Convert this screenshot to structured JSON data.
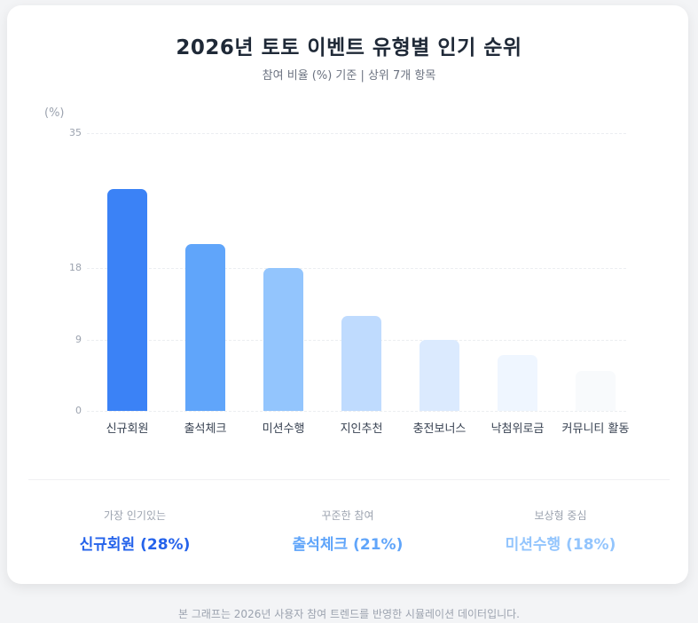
{
  "header": {
    "title": "2026년 토토 이벤트 유형별 인기 순위",
    "subtitle": "참여 비율 (%) 기준 | 상위 7개 항목"
  },
  "chart_data": {
    "type": "bar",
    "title": "2026년 토토 이벤트 유형별 인기 순위",
    "subtitle": "참여 비율 (%) 기준 | 상위 7개 항목",
    "xlabel": "",
    "ylabel": "(%)",
    "ylim": [
      0,
      35
    ],
    "yticks": [
      "0",
      "9",
      "18",
      "35"
    ],
    "grid": true,
    "legend": "none",
    "categories": [
      "신규회원",
      "출석체크",
      "미션수행",
      "지인추천",
      "충전보너스",
      "낙첨위로금",
      "커뮤니티 활동"
    ],
    "values": [
      28,
      21,
      18,
      12,
      9,
      7,
      5
    ],
    "colors": [
      "#3b82f6",
      "#60a5fa",
      "#93c5fd",
      "#bfdbfe",
      "#dbeafe",
      "#eff6ff",
      "#f8fafc"
    ]
  },
  "stats": [
    {
      "label": "가장 인기있는",
      "value": "신규회원 (28%)",
      "color": "#2563eb"
    },
    {
      "label": "꾸준한 참여",
      "value": "출석체크 (21%)",
      "color": "#60a5fa"
    },
    {
      "label": "보상형 중심",
      "value": "미션수행 (18%)",
      "color": "#93c5fd"
    }
  ],
  "footnote": "본 그래프는 2026년 사용자 참여 트렌드를 반영한 시뮬레이션 데이터입니다."
}
